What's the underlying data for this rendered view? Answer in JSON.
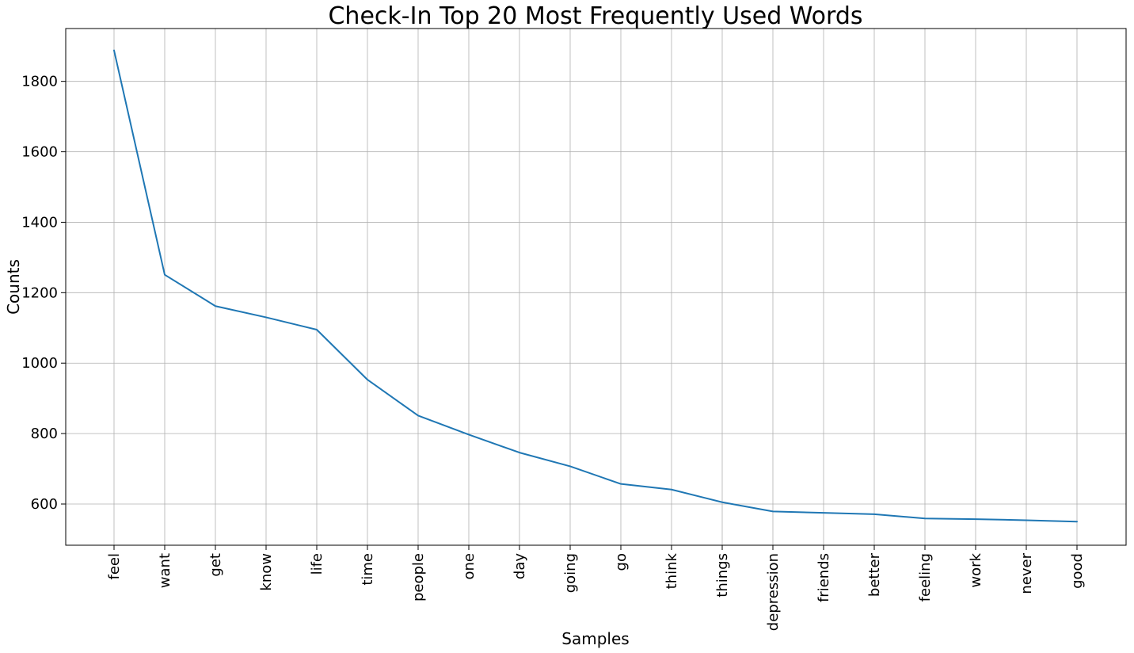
{
  "chart_data": {
    "type": "line",
    "title": "Check-In Top 20 Most Frequently Used Words",
    "xlabel": "Samples",
    "ylabel": "Counts",
    "categories": [
      "feel",
      "want",
      "get",
      "know",
      "life",
      "time",
      "people",
      "one",
      "day",
      "going",
      "go",
      "think",
      "things",
      "depression",
      "friends",
      "better",
      "feeling",
      "work",
      "never",
      "good"
    ],
    "values": [
      1888,
      1251,
      1162,
      1130,
      1095,
      953,
      851,
      797,
      746,
      707,
      657,
      641,
      605,
      579,
      575,
      571,
      559,
      557,
      554,
      550
    ],
    "ylim": [
      483,
      1950
    ],
    "yticks": [
      600,
      800,
      1000,
      1200,
      1400,
      1600,
      1800
    ],
    "grid": true,
    "line_color": "#1f77b4"
  }
}
